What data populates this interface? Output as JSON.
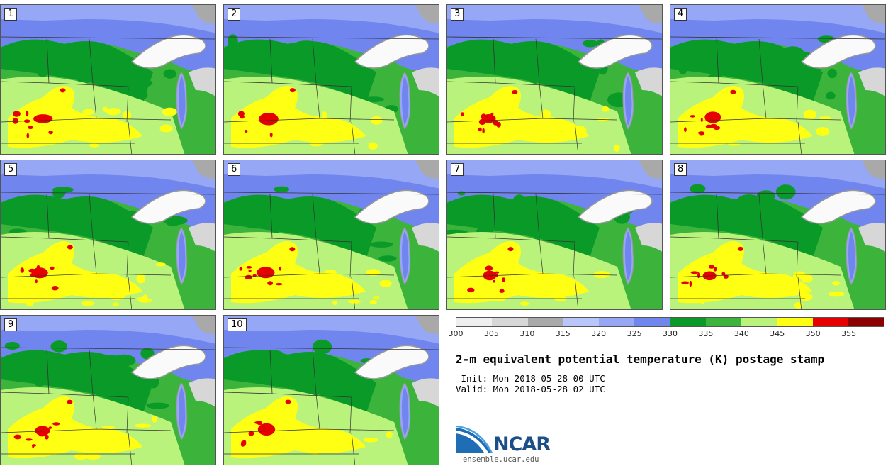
{
  "panels": [
    {
      "label": "1",
      "seed": 11
    },
    {
      "label": "2",
      "seed": 23
    },
    {
      "label": "3",
      "seed": 37
    },
    {
      "label": "4",
      "seed": 41
    },
    {
      "label": "5",
      "seed": 53
    },
    {
      "label": "6",
      "seed": 67
    },
    {
      "label": "7",
      "seed": 71
    },
    {
      "label": "8",
      "seed": 83
    },
    {
      "label": "9",
      "seed": 97
    },
    {
      "label": "10",
      "seed": 101
    }
  ],
  "legend": {
    "colors": [
      "#efefef",
      "#d7d7d7",
      "#a9a9a9",
      "#b9c6fa",
      "#96a7f6",
      "#7185ee",
      "#0a9a28",
      "#3cb43c",
      "#b9f37b",
      "#ffff14",
      "#e60000",
      "#8c0000"
    ],
    "ticks": [
      "300",
      "305",
      "310",
      "315",
      "320",
      "325",
      "330",
      "335",
      "340",
      "345",
      "350",
      "355"
    ]
  },
  "title": "2-m equivalent potential temperature (K) postage stamp",
  "init": " Init: Mon 2018-05-28 00 UTC",
  "valid": "Valid: Mon 2018-05-28 02 UTC",
  "logo": {
    "text": "NCAR",
    "url": "ensemble.ucar.edu"
  }
}
